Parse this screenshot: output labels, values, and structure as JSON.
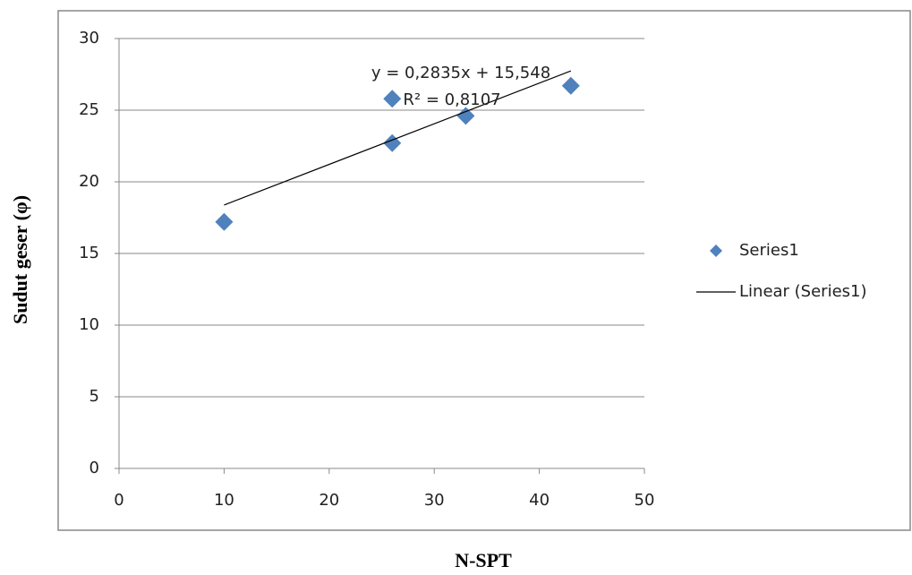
{
  "chart_data": {
    "type": "scatter",
    "x_label": "N-SPT",
    "y_label": "Sudut geser (φ)",
    "series": [
      {
        "name": "Series1",
        "color": "#4f81bd",
        "marker": "diamond",
        "x": [
          10,
          26,
          26,
          33,
          43
        ],
        "values": [
          17.2,
          25.8,
          22.7,
          24.6,
          26.7
        ]
      },
      {
        "name": "Linear (Series1)",
        "color": "#000000",
        "marker": "line",
        "x": [
          10,
          43
        ],
        "values": [
          18.38,
          27.74
        ]
      }
    ],
    "annotations": [
      "y = 0,2835x + 15,548",
      "R² = 0,8107"
    ],
    "xlim": [
      0,
      50
    ],
    "xticks": [
      0,
      10,
      20,
      30,
      40,
      50
    ],
    "ylim": [
      0,
      30
    ],
    "yticks": [
      0,
      5,
      10,
      15,
      20,
      25,
      30
    ],
    "grid": true,
    "legend": "right"
  }
}
